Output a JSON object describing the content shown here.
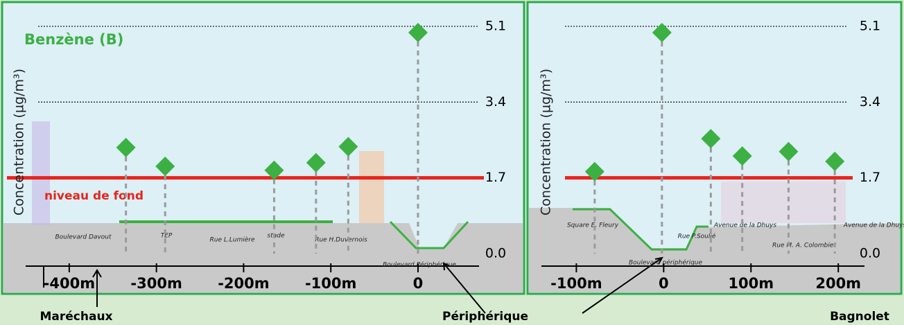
{
  "chart_data": [
    {
      "type": "scatter",
      "title": "Benzène (B)",
      "y_label": "Concentration (µg/m³)",
      "x": [
        -335,
        -290,
        -165,
        -117,
        -80,
        0
      ],
      "values": [
        2.38,
        1.96,
        1.87,
        2.04,
        2.4,
        4.96
      ],
      "color": "#3cb043",
      "xlim": [
        -450,
        70
      ],
      "xticks": [
        {
          "value": -400,
          "label": "-400m"
        },
        {
          "value": -300,
          "label": "-300m"
        },
        {
          "value": -200,
          "label": "-200m"
        },
        {
          "value": -100,
          "label": "-100m"
        },
        0
      ],
      "ylim": [
        0,
        5.1
      ],
      "yticks": [
        {
          "value": 0,
          "label": "0.0"
        },
        1.7,
        3.4,
        5.1
      ],
      "grid": true,
      "reference_line": {
        "value": 1.7,
        "label": "niveau de fond",
        "color": "#e8241c"
      },
      "annotations": [
        "Boulevard Davout",
        "TEP",
        "Rue L.Lumière",
        "stade",
        "Rue H.Duvernois",
        "Boulevard Périphérique"
      ]
    },
    {
      "type": "scatter",
      "y_label": "Concentration (µg/m³)",
      "x": [
        -79,
        -2,
        54,
        90,
        143,
        196
      ],
      "values": [
        1.84,
        4.96,
        2.58,
        2.19,
        2.29,
        2.07
      ],
      "color": "#3cb043",
      "xlim": [
        -140,
        230
      ],
      "xticks": [
        {
          "value": -100,
          "label": "-100m"
        },
        0,
        {
          "value": 100,
          "label": "100m"
        },
        {
          "value": 200,
          "label": "200m"
        }
      ],
      "ylim": [
        0,
        5.1
      ],
      "yticks": [
        {
          "value": 0,
          "label": "0.0"
        },
        1.7,
        3.4,
        5.1
      ],
      "grid": true,
      "reference_line": {
        "value": 1.7,
        "color": "#e8241c"
      },
      "annotations": [
        "Square E. Fleury",
        "Boulevard périphérique",
        "Rue P.Soulié",
        "Avenue de la Dhuys",
        "Rue M. A. Colombier",
        "Avenue de la Dhuys"
      ]
    }
  ],
  "footer_labels": [
    "Maréchaux",
    "Périphérique",
    "Bagnolet"
  ]
}
